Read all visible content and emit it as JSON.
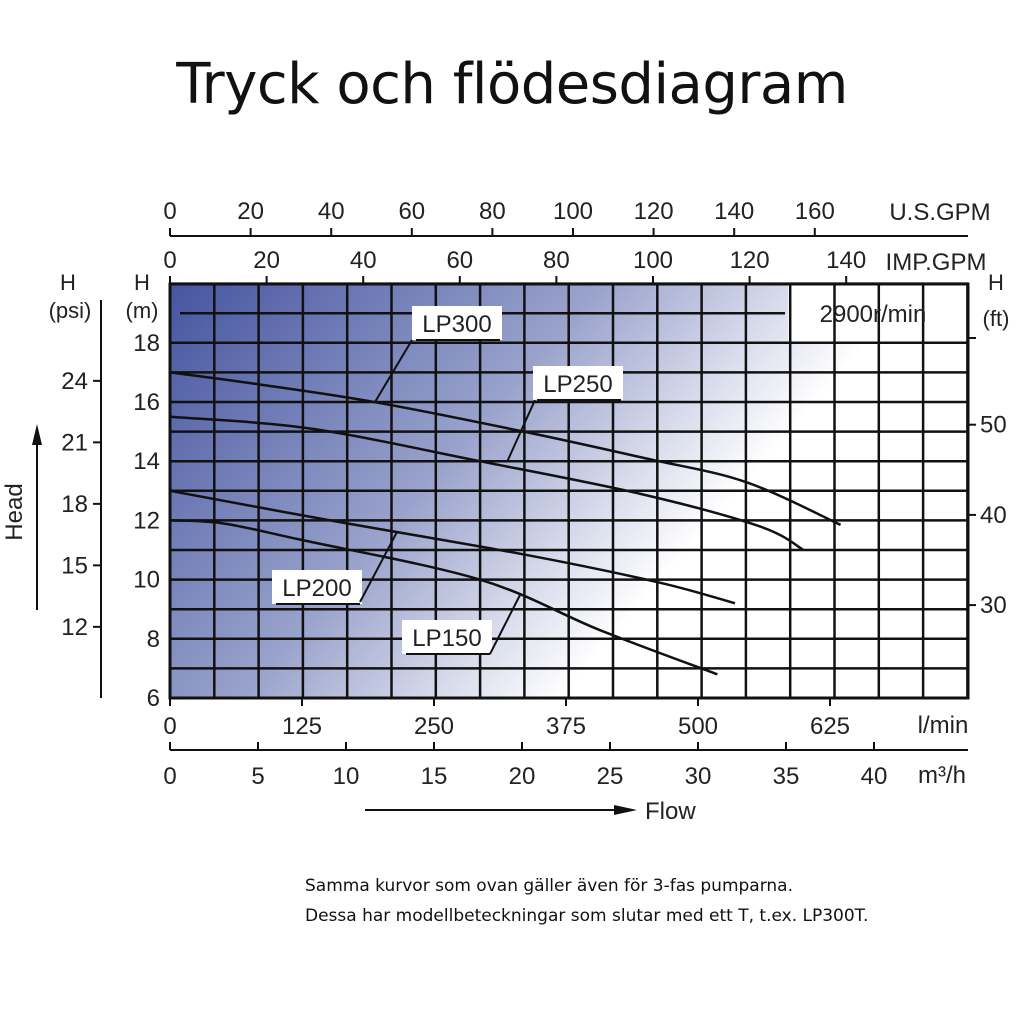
{
  "title": "Tryck och flödesdiagram",
  "caption": [
    "Samma kurvor som ovan gäller även för 3-fas pumparna.",
    "Dessa har modellbeteckningar som slutar med ett T, t.ex. LP300T."
  ],
  "chart_data": {
    "type": "line",
    "title": "Tryck och flödesdiagram",
    "xlabel": "Flow",
    "ylabel": "Head",
    "speed_label": "2900r/min",
    "x_unit": "m³/h",
    "xlim": [
      0,
      45
    ],
    "ylim": [
      6,
      20
    ],
    "grid": true,
    "axes": {
      "us_gpm": {
        "label": "U.S.GPM",
        "ticks": [
          "0",
          "20",
          "40",
          "60",
          "80",
          "100",
          "120",
          "140",
          "160"
        ],
        "values": [
          0,
          20,
          40,
          60,
          80,
          100,
          120,
          140,
          160
        ]
      },
      "imp_gpm": {
        "label": "IMP.GPM",
        "ticks": [
          "0",
          "20",
          "40",
          "60",
          "80",
          "100",
          "120",
          "140"
        ],
        "values": [
          0,
          20,
          40,
          60,
          80,
          100,
          120,
          140
        ]
      },
      "l_min": {
        "label": "l/min",
        "ticks": [
          "0",
          "125",
          "250",
          "375",
          "500",
          "625"
        ],
        "values": [
          0,
          125,
          250,
          375,
          500,
          625
        ]
      },
      "m3_h": {
        "label": "m³/h",
        "ticks": [
          "0",
          "5",
          "10",
          "15",
          "20",
          "25",
          "30",
          "35",
          "40"
        ],
        "values": [
          0,
          5,
          10,
          15,
          20,
          25,
          30,
          35,
          40
        ]
      },
      "head_m": {
        "label_top": "H",
        "label_unit": "(m)",
        "ticks": [
          "6",
          "8",
          "10",
          "12",
          "14",
          "16",
          "18"
        ],
        "values": [
          6,
          8,
          10,
          12,
          14,
          16,
          18
        ]
      },
      "head_psi": {
        "label_top": "H",
        "label_unit": "(psi)",
        "ticks": [
          "12",
          "15",
          "18",
          "21",
          "24"
        ],
        "values": [
          12,
          15,
          18,
          21,
          24
        ]
      },
      "head_ft": {
        "label_top": "H",
        "label_unit": "(ft)",
        "ticks": [
          "30",
          "40",
          "50"
        ],
        "values": [
          30,
          40,
          50
        ]
      }
    },
    "series": [
      {
        "name": "LP300",
        "x": [
          0,
          5,
          11.6,
          20.1,
          27,
          32.7,
          38.1
        ],
        "y": [
          17.0,
          16.6,
          16.0,
          15.0,
          14.1,
          13.3,
          11.85
        ]
      },
      {
        "name": "LP250",
        "x": [
          0,
          8,
          17.6,
          26.7,
          33.5,
          36.0
        ],
        "y": [
          15.5,
          15.1,
          14.0,
          12.9,
          11.8,
          11.0
        ]
      },
      {
        "name": "LP200",
        "x": [
          0,
          9.1,
          20.1,
          27.8,
          32.1
        ],
        "y": [
          13.0,
          12.0,
          10.85,
          9.9,
          9.2
        ]
      },
      {
        "name": "LP150",
        "x": [
          0,
          3,
          7.4,
          17.6,
          24.4,
          31.1
        ],
        "y": [
          12.0,
          11.9,
          11.35,
          10.0,
          8.3,
          6.8
        ]
      }
    ]
  }
}
